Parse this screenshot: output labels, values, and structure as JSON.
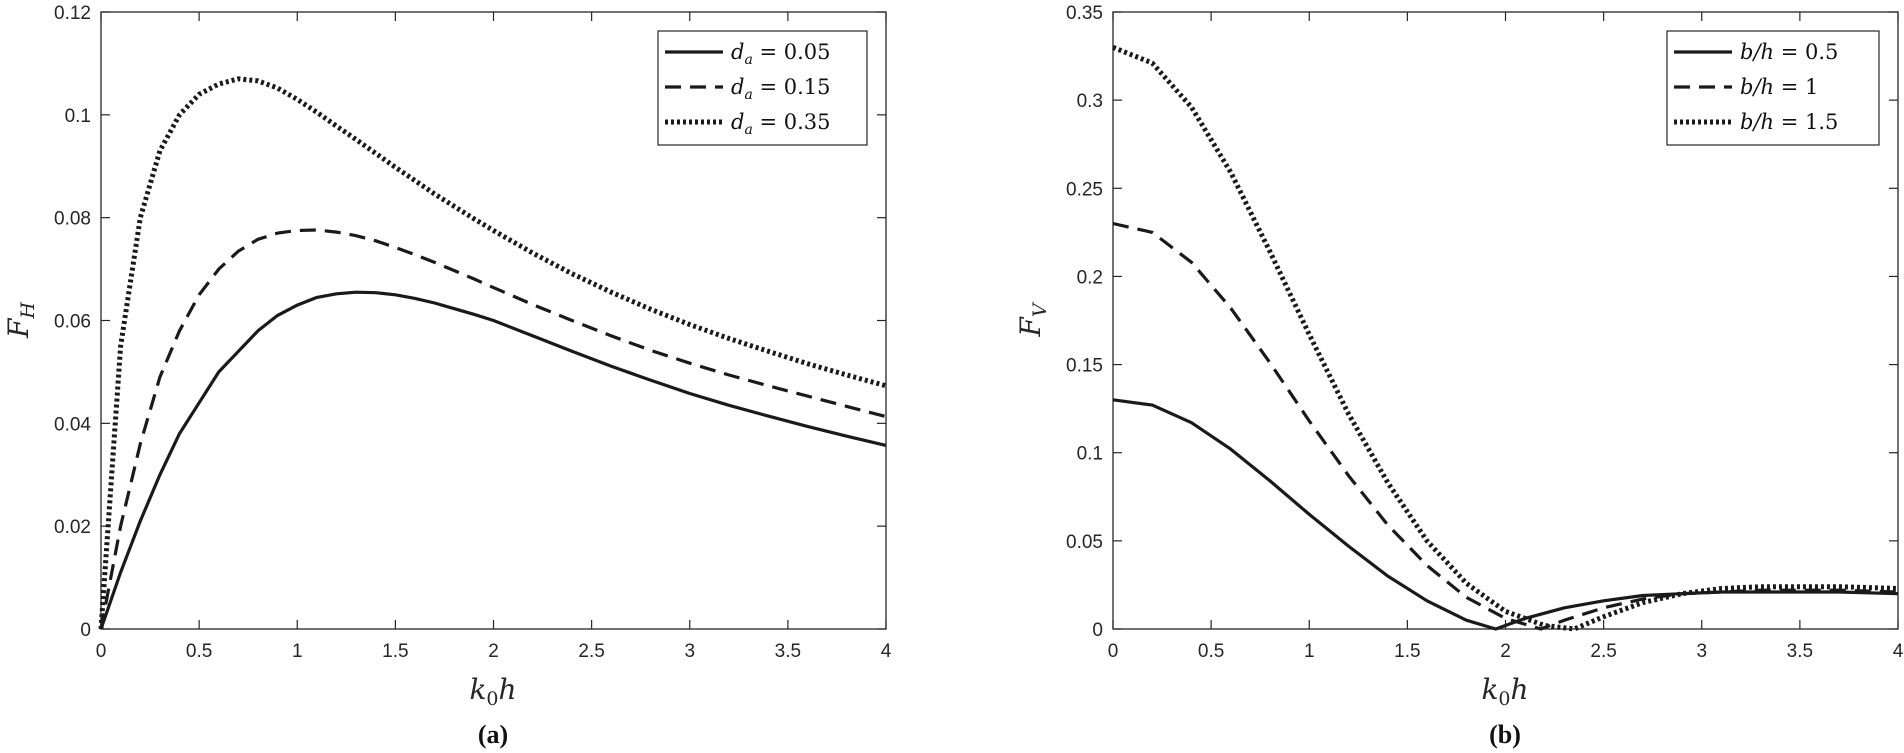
{
  "figure": {
    "panel_labels": [
      "(a)",
      "(b)"
    ]
  },
  "colors": {
    "line": "#1a1a1a",
    "axis": "#262626",
    "background": "#ffffff"
  },
  "chart_data": [
    {
      "type": "line",
      "panel": "(a)",
      "title": "",
      "xlabel": "k0h",
      "ylabel": "FH",
      "xlabel_main": "k",
      "xlabel_sub": "0",
      "xlabel_tail": "h",
      "ylabel_main": "F",
      "ylabel_sub": "H",
      "xlim": [
        0,
        4
      ],
      "ylim": [
        0,
        0.12
      ],
      "xticks": [
        0,
        0.5,
        1,
        1.5,
        2,
        2.5,
        3,
        3.5,
        4
      ],
      "xtick_labels": [
        "0",
        "0.5",
        "1",
        "1.5",
        "2",
        "2.5",
        "3",
        "3.5",
        "4"
      ],
      "yticks": [
        0,
        0.02,
        0.04,
        0.06,
        0.08,
        0.1,
        0.12
      ],
      "ytick_labels": [
        "0",
        "0.02",
        "0.04",
        "0.06",
        "0.08",
        "0.1",
        "0.12"
      ],
      "grid": false,
      "legend_position": "top-right",
      "x": [
        0,
        0.1,
        0.2,
        0.3,
        0.4,
        0.5,
        0.6,
        0.7,
        0.8,
        0.9,
        1.0,
        1.1,
        1.2,
        1.3,
        1.4,
        1.5,
        1.6,
        1.7,
        1.8,
        1.9,
        2.0,
        2.2,
        2.4,
        2.6,
        2.8,
        3.0,
        3.2,
        3.4,
        3.6,
        3.8,
        4.0
      ],
      "series": [
        {
          "name": "d_a = 0.05",
          "label_var": "d",
          "label_sub": "a",
          "label_value": "= 0.05",
          "dash": "solid",
          "values": [
            0,
            0.011,
            0.021,
            0.03,
            0.038,
            0.044,
            0.05,
            0.054,
            0.058,
            0.061,
            0.063,
            0.0645,
            0.0652,
            0.0655,
            0.0654,
            0.065,
            0.0643,
            0.0634,
            0.0623,
            0.0612,
            0.06,
            0.057,
            0.054,
            0.0511,
            0.0484,
            0.0458,
            0.0435,
            0.0414,
            0.0394,
            0.0375,
            0.0357
          ]
        },
        {
          "name": "d_a = 0.15",
          "label_var": "d",
          "label_sub": "a",
          "label_value": "= 0.15",
          "dash": "dashed",
          "values": [
            0,
            0.02,
            0.036,
            0.049,
            0.058,
            0.065,
            0.07,
            0.0735,
            0.0758,
            0.077,
            0.0775,
            0.0776,
            0.0772,
            0.0765,
            0.0755,
            0.0742,
            0.0728,
            0.0713,
            0.0697,
            0.0681,
            0.0664,
            0.0631,
            0.06,
            0.057,
            0.0542,
            0.0517,
            0.0494,
            0.0473,
            0.0453,
            0.0433,
            0.0413
          ]
        },
        {
          "name": "d_a = 0.35",
          "label_var": "d",
          "label_sub": "a",
          "label_value": "= 0.35",
          "dash": "dotted",
          "values": [
            0,
            0.055,
            0.08,
            0.093,
            0.1,
            0.104,
            0.106,
            0.107,
            0.1066,
            0.1052,
            0.103,
            0.1005,
            0.0978,
            0.0952,
            0.0925,
            0.0898,
            0.0872,
            0.0846,
            0.0822,
            0.0798,
            0.0775,
            0.0731,
            0.0691,
            0.0655,
            0.0622,
            0.0592,
            0.0565,
            0.054,
            0.0516,
            0.0494,
            0.0473
          ]
        }
      ]
    },
    {
      "type": "line",
      "panel": "(b)",
      "title": "",
      "xlabel": "k0h",
      "ylabel": "FV",
      "xlabel_main": "k",
      "xlabel_sub": "0",
      "xlabel_tail": "h",
      "ylabel_main": "F",
      "ylabel_sub": "V",
      "xlim": [
        0,
        4
      ],
      "ylim": [
        0,
        0.35
      ],
      "xticks": [
        0,
        0.5,
        1,
        1.5,
        2,
        2.5,
        3,
        3.5,
        4
      ],
      "xtick_labels": [
        "0",
        "0.5",
        "1",
        "1.5",
        "2",
        "2.5",
        "3",
        "3.5",
        "4"
      ],
      "yticks": [
        0,
        0.05,
        0.1,
        0.15,
        0.2,
        0.25,
        0.3,
        0.35
      ],
      "ytick_labels": [
        "0",
        "0.05",
        "0.1",
        "0.15",
        "0.2",
        "0.25",
        "0.3",
        "0.35"
      ],
      "grid": false,
      "legend_position": "top-right",
      "series": [
        {
          "name": "b/h = 0.5",
          "label_var": "b/h",
          "label_value": "= 0.5",
          "dash": "solid",
          "x": [
            0,
            0.2,
            0.4,
            0.6,
            0.8,
            1.0,
            1.2,
            1.4,
            1.6,
            1.8,
            1.95,
            2.1,
            2.3,
            2.5,
            2.7,
            2.9,
            3.1,
            3.3,
            3.5,
            3.7,
            4.0
          ],
          "values": [
            0.13,
            0.127,
            0.117,
            0.102,
            0.084,
            0.065,
            0.047,
            0.03,
            0.016,
            0.005,
            0,
            0.006,
            0.012,
            0.016,
            0.019,
            0.02,
            0.021,
            0.021,
            0.021,
            0.021,
            0.02
          ]
        },
        {
          "name": "b/h = 1",
          "label_var": "b/h",
          "label_value": "= 1",
          "dash": "dashed",
          "x": [
            0,
            0.2,
            0.4,
            0.6,
            0.8,
            1.0,
            1.2,
            1.4,
            1.6,
            1.8,
            2.0,
            2.18,
            2.3,
            2.5,
            2.7,
            2.9,
            3.1,
            3.3,
            3.5,
            3.7,
            4.0
          ],
          "values": [
            0.23,
            0.225,
            0.208,
            0.182,
            0.151,
            0.118,
            0.087,
            0.059,
            0.036,
            0.018,
            0.006,
            0,
            0.005,
            0.012,
            0.017,
            0.02,
            0.021,
            0.022,
            0.022,
            0.022,
            0.021
          ]
        },
        {
          "name": "b/h = 1.5",
          "label_var": "b/h",
          "label_value": "= 1.5",
          "dash": "dotted",
          "x": [
            0,
            0.2,
            0.4,
            0.6,
            0.8,
            1.0,
            1.2,
            1.4,
            1.6,
            1.8,
            2.0,
            2.2,
            2.35,
            2.5,
            2.7,
            2.9,
            3.1,
            3.3,
            3.5,
            3.7,
            4.0
          ],
          "values": [
            0.33,
            0.321,
            0.296,
            0.259,
            0.214,
            0.167,
            0.122,
            0.083,
            0.05,
            0.026,
            0.01,
            0.002,
            0,
            0.007,
            0.015,
            0.02,
            0.023,
            0.024,
            0.024,
            0.024,
            0.023
          ]
        }
      ]
    }
  ]
}
